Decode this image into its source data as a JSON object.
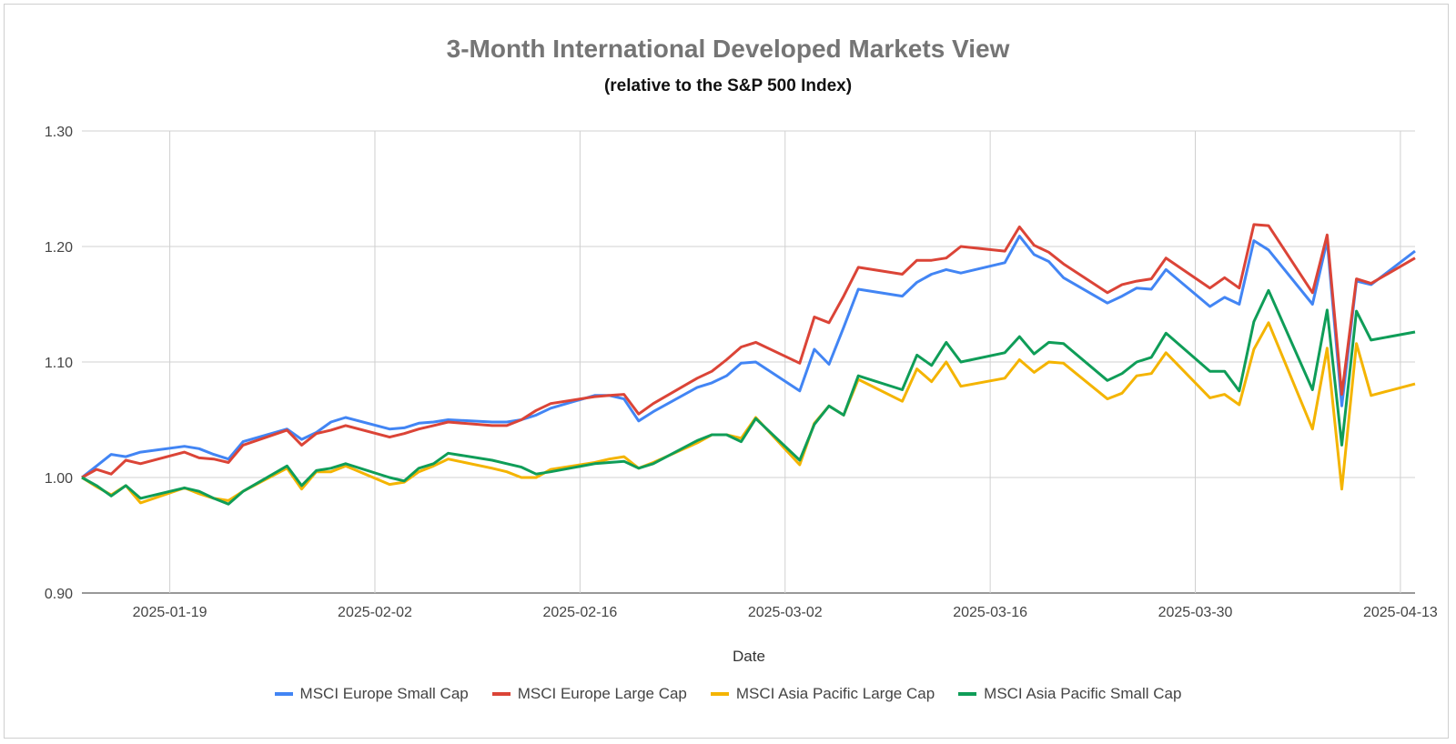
{
  "chart_data": {
    "type": "line",
    "title": "3-Month International Developed Markets View",
    "subtitle": "(relative to the S&P 500 Index)",
    "xlabel": "Date",
    "ylabel": "",
    "ylim": [
      0.9,
      1.3
    ],
    "yticks": [
      "0.90",
      "1.00",
      "1.10",
      "1.20",
      "1.30"
    ],
    "xticks": [
      "2025-01-19",
      "2025-02-02",
      "2025-02-16",
      "2025-03-02",
      "2025-03-16",
      "2025-03-30",
      "2025-04-13"
    ],
    "grid": true,
    "legend_position": "bottom",
    "x": [
      "2025-01-13",
      "2025-01-14",
      "2025-01-15",
      "2025-01-16",
      "2025-01-17",
      "2025-01-20",
      "2025-01-21",
      "2025-01-22",
      "2025-01-23",
      "2025-01-24",
      "2025-01-27",
      "2025-01-28",
      "2025-01-29",
      "2025-01-30",
      "2025-01-31",
      "2025-02-03",
      "2025-02-04",
      "2025-02-05",
      "2025-02-06",
      "2025-02-07",
      "2025-02-10",
      "2025-02-11",
      "2025-02-12",
      "2025-02-13",
      "2025-02-14",
      "2025-02-17",
      "2025-02-18",
      "2025-02-19",
      "2025-02-20",
      "2025-02-21",
      "2025-02-24",
      "2025-02-25",
      "2025-02-26",
      "2025-02-27",
      "2025-02-28",
      "2025-03-03",
      "2025-03-04",
      "2025-03-05",
      "2025-03-06",
      "2025-03-07",
      "2025-03-10",
      "2025-03-11",
      "2025-03-12",
      "2025-03-13",
      "2025-03-14",
      "2025-03-17",
      "2025-03-18",
      "2025-03-19",
      "2025-03-20",
      "2025-03-21",
      "2025-03-24",
      "2025-03-25",
      "2025-03-26",
      "2025-03-27",
      "2025-03-28",
      "2025-03-31",
      "2025-04-01",
      "2025-04-02",
      "2025-04-03",
      "2025-04-04",
      "2025-04-07",
      "2025-04-08",
      "2025-04-09",
      "2025-04-10",
      "2025-04-11",
      "2025-04-14"
    ],
    "series": [
      {
        "name": "MSCI Europe Small Cap",
        "color": "#4285F4",
        "values": [
          1.0,
          1.01,
          1.02,
          1.018,
          1.022,
          1.027,
          1.025,
          1.02,
          1.016,
          1.031,
          1.042,
          1.033,
          1.039,
          1.048,
          1.052,
          1.042,
          1.043,
          1.047,
          1.048,
          1.05,
          1.048,
          1.048,
          1.05,
          1.054,
          1.06,
          1.071,
          1.071,
          1.068,
          1.049,
          1.057,
          1.078,
          1.082,
          1.088,
          1.099,
          1.1,
          1.075,
          1.111,
          1.098,
          1.13,
          1.163,
          1.157,
          1.169,
          1.176,
          1.18,
          1.177,
          1.186,
          1.209,
          1.193,
          1.187,
          1.173,
          1.151,
          1.157,
          1.164,
          1.163,
          1.18,
          1.148,
          1.156,
          1.15,
          1.205,
          1.197,
          1.15,
          1.205,
          1.062,
          1.17,
          1.167,
          1.196
        ]
      },
      {
        "name": "MSCI Europe Large Cap",
        "color": "#DB4437",
        "values": [
          1.0,
          1.007,
          1.003,
          1.015,
          1.012,
          1.022,
          1.017,
          1.016,
          1.013,
          1.028,
          1.041,
          1.028,
          1.038,
          1.041,
          1.045,
          1.035,
          1.038,
          1.042,
          1.045,
          1.048,
          1.045,
          1.045,
          1.05,
          1.058,
          1.064,
          1.07,
          1.071,
          1.072,
          1.055,
          1.064,
          1.086,
          1.092,
          1.102,
          1.113,
          1.117,
          1.099,
          1.139,
          1.134,
          1.157,
          1.182,
          1.176,
          1.188,
          1.188,
          1.19,
          1.2,
          1.196,
          1.217,
          1.201,
          1.195,
          1.185,
          1.16,
          1.167,
          1.17,
          1.172,
          1.19,
          1.164,
          1.173,
          1.164,
          1.219,
          1.218,
          1.16,
          1.21,
          1.072,
          1.172,
          1.168,
          1.19
        ]
      },
      {
        "name": "MSCI Asia Pacific Large Cap",
        "color": "#F4B400",
        "values": [
          1.0,
          0.992,
          0.985,
          0.993,
          0.978,
          0.991,
          0.986,
          0.982,
          0.98,
          0.988,
          1.008,
          0.99,
          1.005,
          1.005,
          1.01,
          0.994,
          0.996,
          1.005,
          1.01,
          1.016,
          1.008,
          1.005,
          1.0,
          1.0,
          1.007,
          1.013,
          1.016,
          1.018,
          1.008,
          1.013,
          1.03,
          1.037,
          1.037,
          1.034,
          1.052,
          1.011,
          1.047,
          1.062,
          1.054,
          1.085,
          1.066,
          1.094,
          1.083,
          1.1,
          1.079,
          1.086,
          1.102,
          1.091,
          1.1,
          1.099,
          1.068,
          1.073,
          1.088,
          1.09,
          1.108,
          1.069,
          1.072,
          1.063,
          1.111,
          1.134,
          1.042,
          1.112,
          0.99,
          1.116,
          1.071,
          1.081
        ]
      },
      {
        "name": "MSCI Asia Pacific Small Cap",
        "color": "#0F9D58",
        "values": [
          1.0,
          0.993,
          0.984,
          0.993,
          0.982,
          0.991,
          0.988,
          0.982,
          0.977,
          0.988,
          1.01,
          0.993,
          1.006,
          1.008,
          1.012,
          1.0,
          0.997,
          1.008,
          1.012,
          1.021,
          1.015,
          1.012,
          1.009,
          1.003,
          1.005,
          1.012,
          1.013,
          1.014,
          1.008,
          1.012,
          1.032,
          1.037,
          1.037,
          1.031,
          1.051,
          1.015,
          1.046,
          1.062,
          1.054,
          1.088,
          1.076,
          1.106,
          1.097,
          1.117,
          1.1,
          1.108,
          1.122,
          1.107,
          1.117,
          1.116,
          1.084,
          1.09,
          1.1,
          1.104,
          1.125,
          1.092,
          1.092,
          1.075,
          1.135,
          1.162,
          1.076,
          1.145,
          1.028,
          1.144,
          1.119,
          1.126
        ]
      }
    ]
  }
}
